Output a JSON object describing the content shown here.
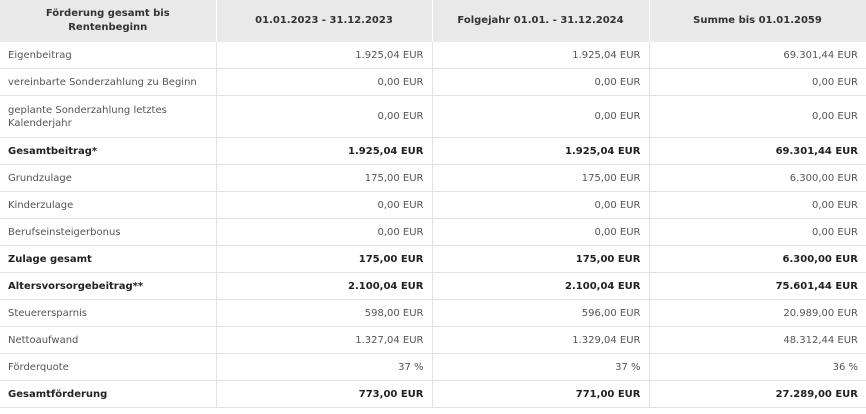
{
  "table": {
    "headers": [
      "Förderung gesamt bis Rentenbeginn",
      "01.01.2023 - 31.12.2023",
      "Folgejahr 01.01. - 31.12.2024",
      "Summe bis 01.01.2059"
    ],
    "rows": [
      {
        "label": "Eigenbeitrag",
        "v1": "1.925,04 EUR",
        "v2": "1.925,04 EUR",
        "v3": "69.301,44 EUR"
      },
      {
        "label": "vereinbarte Sonderzahlung zu Beginn",
        "v1": "0,00 EUR",
        "v2": "0,00 EUR",
        "v3": "0,00 EUR"
      },
      {
        "label": "geplante Sonderzahlung letztes Kalenderjahr",
        "v1": "0,00 EUR",
        "v2": "0,00 EUR",
        "v3": "0,00 EUR"
      },
      {
        "label": "Gesamtbeitrag*",
        "v1": "1.925,04 EUR",
        "v2": "1.925,04 EUR",
        "v3": "69.301,44 EUR"
      },
      {
        "label": "Grundzulage",
        "v1": "175,00 EUR",
        "v2": "175,00 EUR",
        "v3": "6.300,00 EUR"
      },
      {
        "label": "Kinderzulage",
        "v1": "0,00 EUR",
        "v2": "0,00 EUR",
        "v3": "0,00 EUR"
      },
      {
        "label": "Berufseinsteigerbonus",
        "v1": "0,00 EUR",
        "v2": "0,00 EUR",
        "v3": "0,00 EUR"
      },
      {
        "label": "Zulage gesamt",
        "v1": "175,00 EUR",
        "v2": "175,00 EUR",
        "v3": "6.300,00 EUR"
      },
      {
        "label": "Altersvorsorgebeitrag**",
        "v1": "2.100,04 EUR",
        "v2": "2.100,04 EUR",
        "v3": "75.601,44 EUR"
      },
      {
        "label": "Steuerersparnis",
        "v1": "598,00 EUR",
        "v2": "596,00 EUR",
        "v3": "20.989,00 EUR"
      },
      {
        "label": "Nettoaufwand",
        "v1": "1.327,04 EUR",
        "v2": "1.329,04 EUR",
        "v3": "48.312,44 EUR"
      },
      {
        "label": "Förderquote",
        "v1": "37 %",
        "v2": "37 %",
        "v3": "36 %"
      },
      {
        "label": "Gesamtförderung",
        "v1": "773,00 EUR",
        "v2": "771,00 EUR",
        "v3": "27.289,00 EUR"
      }
    ]
  }
}
